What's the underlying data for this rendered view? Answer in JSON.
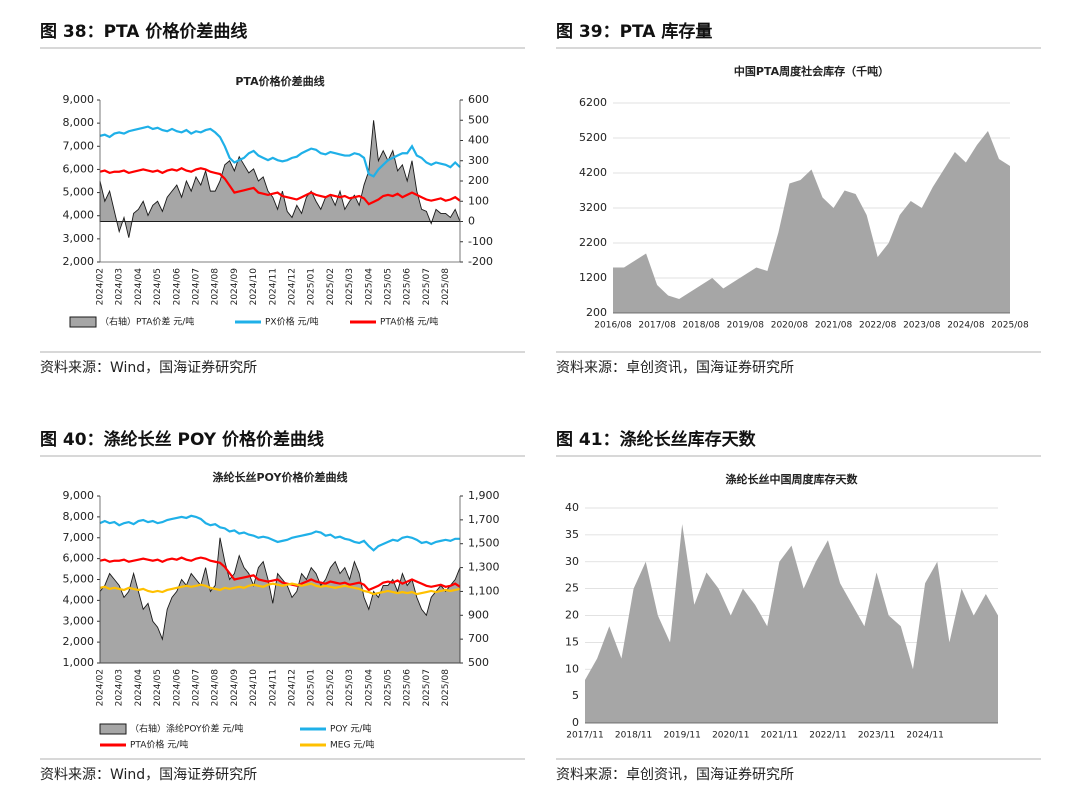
{
  "chart_data": [
    {
      "type": "line",
      "figure": "图 38：PTA 价格价差曲线",
      "title": "PTA价格价差曲线",
      "source": "资料来源：Wind，国海证券研究所",
      "categories": [
        "2024/02",
        null,
        null,
        null,
        "2024/03",
        null,
        null,
        null,
        "2024/04",
        null,
        null,
        null,
        "2024/05",
        null,
        null,
        null,
        "2024/06",
        null,
        null,
        null,
        "2024/07",
        null,
        null,
        null,
        "2024/08",
        null,
        null,
        null,
        "2024/09",
        null,
        null,
        null,
        "2024/10",
        null,
        null,
        null,
        "2024/11",
        null,
        null,
        null,
        "2024/12",
        null,
        null,
        null,
        "2025/01",
        null,
        null,
        null,
        "2025/02",
        null,
        null,
        null,
        "2025/03",
        null,
        null,
        null,
        "2025/04",
        null,
        null,
        null,
        "2025/05",
        null,
        null,
        null,
        "2025/06",
        null,
        null,
        null,
        "2025/07",
        null,
        null,
        null,
        "2025/08",
        null,
        null,
        null
      ],
      "ylim": [
        2000,
        9000
      ],
      "yticks": [
        {
          "value": 2000,
          "label": "2,000"
        },
        {
          "value": 3000,
          "label": "3,000"
        },
        {
          "value": 4000,
          "label": "4,000"
        },
        {
          "value": 5000,
          "label": "5,000"
        },
        {
          "value": 6000,
          "label": "6,000"
        },
        {
          "value": 7000,
          "label": "7,000"
        },
        {
          "value": 8000,
          "label": "8,000"
        },
        {
          "value": 9000,
          "label": "9,000"
        }
      ],
      "y2lim": [
        -200,
        600
      ],
      "y2ticks": [
        -200,
        -100,
        0,
        100,
        200,
        300,
        400,
        500,
        600
      ],
      "grid": false,
      "legend": "bottom",
      "series": [
        {
          "name": "（右轴）PTA价差  元/吨",
          "type": "area",
          "axis": "y2",
          "color": "#a6a6a6",
          "edgecolor": "#1a1a1a",
          "values": [
            200,
            100,
            150,
            50,
            -50,
            20,
            -80,
            40,
            60,
            100,
            30,
            80,
            100,
            50,
            120,
            150,
            180,
            120,
            200,
            150,
            220,
            180,
            250,
            150,
            150,
            200,
            280,
            300,
            250,
            320,
            280,
            240,
            260,
            200,
            220,
            150,
            120,
            60,
            150,
            50,
            20,
            80,
            40,
            120,
            150,
            100,
            60,
            120,
            130,
            80,
            150,
            60,
            100,
            130,
            80,
            180,
            250,
            500,
            300,
            350,
            300,
            350,
            250,
            280,
            200,
            300,
            150,
            60,
            50,
            -10,
            60,
            40,
            40,
            20,
            60,
            0
          ]
        },
        {
          "name": "PX价格  元/吨",
          "type": "line",
          "color": "#1fb0e8",
          "values": [
            7450,
            7500,
            7400,
            7550,
            7600,
            7550,
            7650,
            7700,
            7750,
            7800,
            7850,
            7750,
            7800,
            7700,
            7650,
            7750,
            7650,
            7600,
            7700,
            7550,
            7650,
            7600,
            7700,
            7750,
            7600,
            7400,
            7000,
            6500,
            6300,
            6400,
            6500,
            6700,
            6800,
            6600,
            6500,
            6400,
            6500,
            6400,
            6350,
            6400,
            6500,
            6550,
            6700,
            6800,
            6900,
            6850,
            6700,
            6650,
            6750,
            6700,
            6650,
            6600,
            6600,
            6700,
            6650,
            6500,
            5800,
            5700,
            6000,
            6200,
            6400,
            6500,
            6600,
            6700,
            6700,
            7000,
            6600,
            6500,
            6300,
            6200,
            6300,
            6250,
            6200,
            6100,
            6300,
            6100
          ]
        },
        {
          "name": "PTA价格  元/吨",
          "type": "line",
          "color": "#ff0000",
          "values": [
            5900,
            5950,
            5850,
            5900,
            5900,
            5950,
            5850,
            5900,
            5950,
            6000,
            5950,
            5900,
            5950,
            5850,
            5950,
            6000,
            5950,
            6050,
            5950,
            5900,
            6000,
            6050,
            6000,
            5900,
            5850,
            5800,
            5600,
            5300,
            5000,
            5050,
            5100,
            5150,
            5200,
            5000,
            4950,
            4900,
            4950,
            5000,
            4850,
            4800,
            4750,
            4700,
            4800,
            4900,
            5000,
            4900,
            4850,
            4800,
            4900,
            4850,
            4800,
            4850,
            4750,
            4800,
            4850,
            4750,
            4500,
            4600,
            4700,
            4850,
            4900,
            4850,
            4950,
            4800,
            4900,
            5000,
            4900,
            4800,
            4700,
            4650,
            4700,
            4750,
            4650,
            4700,
            4800,
            4650
          ]
        }
      ]
    },
    {
      "type": "area",
      "figure": "图 39：PTA 库存量",
      "title": "中国PTA周度社会库存（千吨）",
      "source": "资料来源：卓创资讯，国海证券研究所",
      "categories": [
        "2016/08",
        null,
        null,
        null,
        "2017/08",
        null,
        null,
        null,
        "2018/08",
        null,
        null,
        null,
        "2019/08",
        null,
        null,
        null,
        "2020/08",
        null,
        null,
        null,
        "2021/08",
        null,
        null,
        null,
        "2022/08",
        null,
        null,
        null,
        "2023/08",
        null,
        null,
        null,
        "2024/08",
        null,
        null,
        null,
        "2025/08"
      ],
      "ylim": [
        200,
        6200
      ],
      "yticks": [
        200,
        1200,
        2200,
        3200,
        4200,
        5200,
        6200
      ],
      "grid": true,
      "color": "#a6a6a6",
      "values": [
        1500,
        1500,
        1700,
        1900,
        1000,
        700,
        600,
        800,
        1000,
        1200,
        900,
        1100,
        1300,
        1500,
        1400,
        2500,
        3900,
        4000,
        4300,
        3500,
        3200,
        3700,
        3600,
        3000,
        1800,
        2200,
        3000,
        3400,
        3200,
        3800,
        4300,
        4800,
        4500,
        5000,
        5400,
        4600,
        4400
      ]
    },
    {
      "type": "line",
      "figure": "图 40：涤纶长丝 POY 价格价差曲线",
      "title": "涤纶长丝POY价格价差曲线",
      "source": "资料来源：Wind，国海证券研究所",
      "categories": [
        "2024/02",
        null,
        null,
        null,
        "2024/03",
        null,
        null,
        null,
        "2024/04",
        null,
        null,
        null,
        "2024/05",
        null,
        null,
        null,
        "2024/06",
        null,
        null,
        null,
        "2024/07",
        null,
        null,
        null,
        "2024/08",
        null,
        null,
        null,
        "2024/09",
        null,
        null,
        null,
        "2024/10",
        null,
        null,
        null,
        "2024/11",
        null,
        null,
        null,
        "2024/12",
        null,
        null,
        null,
        "2025/01",
        null,
        null,
        null,
        "2025/02",
        null,
        null,
        null,
        "2025/03",
        null,
        null,
        null,
        "2025/04",
        null,
        null,
        null,
        "2025/05",
        null,
        null,
        null,
        "2025/06",
        null,
        null,
        null,
        "2025/07",
        null,
        null,
        null,
        "2025/08",
        null,
        null,
        null
      ],
      "ylim": [
        1000,
        9000
      ],
      "yticks": [
        {
          "value": 1000,
          "label": "1,000"
        },
        {
          "value": 2000,
          "label": "2,000"
        },
        {
          "value": 3000,
          "label": "3,000"
        },
        {
          "value": 4000,
          "label": "4,000"
        },
        {
          "value": 5000,
          "label": "5,000"
        },
        {
          "value": 6000,
          "label": "6,000"
        },
        {
          "value": 7000,
          "label": "7,000"
        },
        {
          "value": 8000,
          "label": "8,000"
        },
        {
          "value": 9000,
          "label": "9,000"
        }
      ],
      "y2lim": [
        500,
        1900
      ],
      "y2ticks": [
        500,
        700,
        900,
        {
          "value": 1100,
          "label": "1,100"
        },
        {
          "value": 1300,
          "label": "1,300"
        },
        {
          "value": 1500,
          "label": "1,500"
        },
        {
          "value": 1700,
          "label": "1,700"
        },
        {
          "value": 1900,
          "label": "1,900"
        }
      ],
      "grid": false,
      "legend": "bottom",
      "series": [
        {
          "name": "（右轴）涤纶POY价差  元/吨",
          "type": "area",
          "axis": "y2",
          "color": "#a6a6a6",
          "edgecolor": "#1a1a1a",
          "values": [
            1100,
            1150,
            1250,
            1200,
            1150,
            1050,
            1100,
            1250,
            1100,
            950,
            1000,
            850,
            800,
            700,
            950,
            1050,
            1100,
            1200,
            1150,
            1250,
            1200,
            1150,
            1300,
            1100,
            1150,
            1550,
            1350,
            1200,
            1250,
            1400,
            1300,
            1250,
            1150,
            1300,
            1350,
            1200,
            1000,
            1250,
            1200,
            1150,
            1050,
            1100,
            1250,
            1200,
            1300,
            1250,
            1150,
            1200,
            1300,
            1350,
            1250,
            1300,
            1200,
            1350,
            1250,
            1050,
            950,
            1100,
            1050,
            1150,
            1150,
            1200,
            1100,
            1250,
            1150,
            1200,
            1050,
            950,
            900,
            1050,
            1100,
            1150,
            1100,
            1150,
            1200,
            1300
          ]
        },
        {
          "name": "POY  元/吨",
          "type": "line",
          "color": "#1fb0e8",
          "values": [
            7700,
            7800,
            7700,
            7750,
            7600,
            7700,
            7750,
            7650,
            7800,
            7850,
            7750,
            7800,
            7700,
            7750,
            7850,
            7900,
            7950,
            8000,
            7950,
            8050,
            8000,
            7900,
            7700,
            7600,
            7650,
            7500,
            7450,
            7300,
            7350,
            7200,
            7250,
            7150,
            7100,
            7000,
            7050,
            7000,
            6900,
            6800,
            6850,
            6900,
            7000,
            7050,
            7100,
            7150,
            7200,
            7300,
            7250,
            7100,
            7150,
            7000,
            7050,
            6950,
            6900,
            6800,
            6750,
            6850,
            6600,
            6400,
            6600,
            6700,
            6800,
            6900,
            6850,
            7000,
            7050,
            7000,
            6900,
            6750,
            6800,
            6700,
            6800,
            6850,
            6900,
            6850,
            6950,
            6950
          ]
        },
        {
          "name": "PTA价格  元/吨",
          "type": "line",
          "color": "#ff0000",
          "values": [
            5900,
            5950,
            5850,
            5900,
            5900,
            5950,
            5850,
            5900,
            5950,
            6000,
            5950,
            5900,
            5950,
            5850,
            5950,
            6000,
            5950,
            6050,
            5950,
            5900,
            6000,
            6050,
            6000,
            5900,
            5850,
            5800,
            5600,
            5300,
            5000,
            5050,
            5100,
            5150,
            5200,
            5000,
            4950,
            4900,
            4950,
            5000,
            4850,
            4800,
            4750,
            4700,
            4800,
            4900,
            5000,
            4900,
            4850,
            4800,
            4900,
            4850,
            4800,
            4850,
            4750,
            4800,
            4850,
            4750,
            4500,
            4600,
            4700,
            4850,
            4900,
            4850,
            4950,
            4800,
            4900,
            5000,
            4900,
            4800,
            4700,
            4650,
            4700,
            4750,
            4650,
            4700,
            4800,
            4650
          ]
        },
        {
          "name": "MEG  元/吨",
          "type": "line",
          "color": "#ffc000",
          "values": [
            4600,
            4650,
            4550,
            4600,
            4550,
            4500,
            4600,
            4550,
            4500,
            4550,
            4450,
            4400,
            4450,
            4400,
            4500,
            4550,
            4600,
            4650,
            4700,
            4650,
            4700,
            4750,
            4700,
            4600,
            4550,
            4500,
            4600,
            4550,
            4600,
            4650,
            4600,
            4700,
            4750,
            4700,
            4650,
            4750,
            4800,
            4750,
            4700,
            4750,
            4800,
            4750,
            4700,
            4750,
            4800,
            4700,
            4650,
            4700,
            4650,
            4600,
            4650,
            4700,
            4650,
            4600,
            4550,
            4450,
            4400,
            4300,
            4350,
            4400,
            4450,
            4400,
            4350,
            4400,
            4350,
            4400,
            4300,
            4350,
            4400,
            4450,
            4400,
            4450,
            4500,
            4450,
            4500,
            4550
          ]
        }
      ]
    },
    {
      "type": "area",
      "figure": "图 41：涤纶长丝库存天数",
      "title": "涤纶长丝中国周度库存天数",
      "source": "资料来源：卓创资讯，国海证券研究所",
      "categories": [
        "2017/11",
        null,
        null,
        null,
        "2018/11",
        null,
        null,
        null,
        "2019/11",
        null,
        null,
        null,
        "2020/11",
        null,
        null,
        null,
        "2021/11",
        null,
        null,
        null,
        "2022/11",
        null,
        null,
        null,
        "2023/11",
        null,
        null,
        null,
        "2024/11",
        null,
        null,
        null,
        null,
        null,
        null
      ],
      "ylim": [
        0,
        40
      ],
      "yticks": [
        0,
        5,
        10,
        15,
        20,
        25,
        30,
        35,
        40
      ],
      "grid": true,
      "color": "#a6a6a6",
      "values": [
        8,
        12,
        18,
        12,
        25,
        30,
        20,
        15,
        37,
        22,
        28,
        25,
        20,
        25,
        22,
        18,
        30,
        33,
        25,
        30,
        34,
        26,
        22,
        18,
        28,
        20,
        18,
        10,
        26,
        30,
        15,
        25,
        20,
        24,
        20
      ]
    }
  ]
}
